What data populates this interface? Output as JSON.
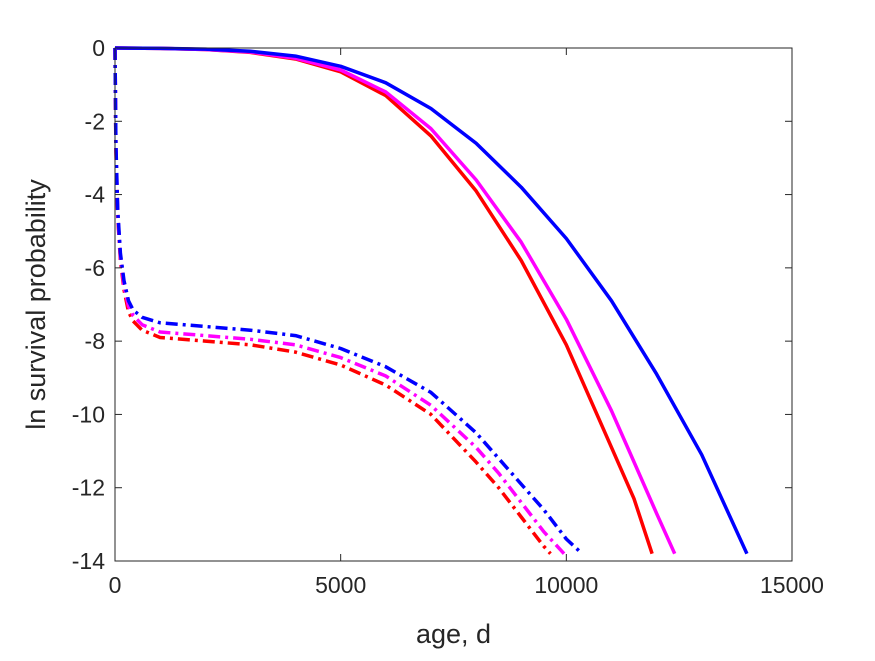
{
  "chart_data": {
    "type": "line",
    "title": "",
    "xlabel": "age, d",
    "ylabel": "ln survival probability",
    "xlim": [
      0,
      15000
    ],
    "ylim": [
      -14,
      0
    ],
    "xticks": [
      0,
      5000,
      10000,
      15000
    ],
    "xtick_labels": [
      "0",
      "5000",
      "10000",
      "15000"
    ],
    "yticks": [
      0,
      -2,
      -4,
      -6,
      -8,
      -10,
      -12,
      -14
    ],
    "ytick_labels": [
      "0",
      "-2",
      "-4",
      "-6",
      "-8",
      "-10",
      "-12",
      "-14"
    ],
    "grid": false,
    "legend": "none",
    "series": [
      {
        "color": "#ff0000",
        "style": "solid",
        "x": [
          0,
          1000,
          2000,
          3000,
          4000,
          5000,
          6000,
          7000,
          8000,
          9000,
          10000,
          11000,
          11500,
          11900
        ],
        "y": [
          0,
          -0.01,
          -0.04,
          -0.12,
          -0.3,
          -0.65,
          -1.3,
          -2.4,
          -3.9,
          -5.8,
          -8.1,
          -10.9,
          -12.3,
          -13.8
        ]
      },
      {
        "color": "#ff00ff",
        "style": "solid",
        "x": [
          0,
          1000,
          2000,
          3000,
          4000,
          5000,
          6000,
          7000,
          8000,
          9000,
          10000,
          11000,
          12000,
          12400
        ],
        "y": [
          0,
          -0.01,
          -0.04,
          -0.11,
          -0.28,
          -0.6,
          -1.2,
          -2.2,
          -3.6,
          -5.3,
          -7.4,
          -9.9,
          -12.7,
          -13.8
        ]
      },
      {
        "color": "#0000ff",
        "style": "solid",
        "x": [
          0,
          1000,
          2000,
          3000,
          4000,
          5000,
          6000,
          7000,
          8000,
          9000,
          10000,
          11000,
          12000,
          13000,
          14000
        ],
        "y": [
          0,
          -0.01,
          -0.03,
          -0.09,
          -0.22,
          -0.5,
          -0.95,
          -1.65,
          -2.6,
          -3.8,
          -5.2,
          -6.9,
          -8.9,
          -11.1,
          -13.8
        ]
      },
      {
        "color": "#ff0000",
        "style": "dashdot",
        "x": [
          0,
          20,
          60,
          120,
          200,
          300,
          400,
          600,
          1000,
          2000,
          3000,
          4000,
          5000,
          6000,
          7000,
          8000,
          8500,
          9000,
          9500,
          9650
        ],
        "y": [
          0,
          -2.8,
          -4.6,
          -5.8,
          -6.6,
          -7.2,
          -7.45,
          -7.7,
          -7.9,
          -8.0,
          -8.1,
          -8.3,
          -8.65,
          -9.2,
          -10.0,
          -11.3,
          -12.0,
          -12.8,
          -13.6,
          -13.8
        ]
      },
      {
        "color": "#ff00ff",
        "style": "dashdot",
        "x": [
          0,
          20,
          60,
          120,
          200,
          300,
          400,
          600,
          1000,
          2000,
          3000,
          4000,
          5000,
          6000,
          7000,
          8000,
          8500,
          9000,
          9500,
          9950
        ],
        "y": [
          0,
          -2.7,
          -4.5,
          -5.7,
          -6.5,
          -7.05,
          -7.3,
          -7.55,
          -7.75,
          -7.85,
          -7.95,
          -8.1,
          -8.45,
          -8.95,
          -9.75,
          -10.9,
          -11.6,
          -12.4,
          -13.2,
          -13.8
        ]
      },
      {
        "color": "#0000ff",
        "style": "dashdot",
        "x": [
          0,
          20,
          60,
          120,
          200,
          300,
          400,
          600,
          1000,
          2000,
          3000,
          4000,
          5000,
          6000,
          7000,
          8000,
          8500,
          9000,
          9500,
          10000,
          10350
        ],
        "y": [
          0,
          -2.6,
          -4.4,
          -5.6,
          -6.35,
          -6.9,
          -7.15,
          -7.35,
          -7.5,
          -7.6,
          -7.7,
          -7.85,
          -8.2,
          -8.7,
          -9.4,
          -10.5,
          -11.2,
          -11.9,
          -12.6,
          -13.4,
          -13.8
        ]
      }
    ]
  }
}
